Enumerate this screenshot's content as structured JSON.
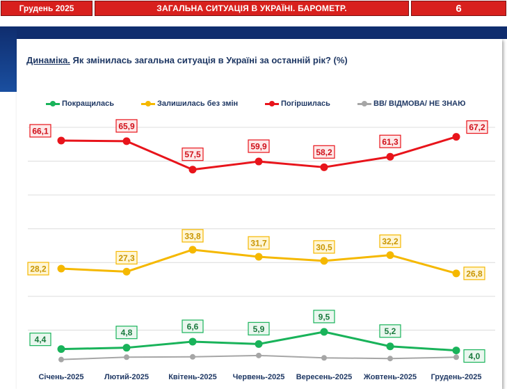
{
  "header": {
    "date": "Грудень 2025",
    "title": "ЗАГАЛЬНА СИТУАЦІЯ В УКРАЇНІ. БАРОМЕТР.",
    "page": "6"
  },
  "question": {
    "lead": "Динаміка.",
    "text": " Як змінилась загальна ситуація в Україні за останній рік? (%)"
  },
  "colors": {
    "brand_red": "#d8201d",
    "navy": "#0f2d6e",
    "text_navy": "#1f3864"
  },
  "chart_data": {
    "type": "line",
    "categories": [
      "Січень-2025",
      "Лютий-2025",
      "Квітень-2025",
      "Червень-2025",
      "Вересень-2025",
      "Жовтень-2025",
      "Грудень-2025"
    ],
    "ylim": [
      0,
      70
    ],
    "grid": true,
    "legend_position": "top",
    "series": [
      {
        "name": "Покращилась",
        "color": "#19b35a",
        "values": [
          4.4,
          4.8,
          6.6,
          5.9,
          9.5,
          5.2,
          4.0
        ],
        "labels": [
          "4,4",
          "4,8",
          "6,6",
          "5,9",
          "9,5",
          "5,2",
          "4,0"
        ],
        "labeled": true
      },
      {
        "name": "Залишилась без змін",
        "color": "#f5b800",
        "values": [
          28.2,
          27.3,
          33.8,
          31.7,
          30.5,
          32.2,
          26.8
        ],
        "labels": [
          "28,2",
          "27,3",
          "33,8",
          "31,7",
          "30,5",
          "32,2",
          "26,8"
        ],
        "labeled": true
      },
      {
        "name": "Погіршилась",
        "color": "#e8141b",
        "values": [
          66.1,
          65.9,
          57.5,
          59.9,
          58.2,
          61.3,
          67.2
        ],
        "labels": [
          "66,1",
          "65,9",
          "57,5",
          "59,9",
          "58,2",
          "61,3",
          "67,2"
        ],
        "labeled": true
      },
      {
        "name": "ВВ/ ВІДМОВА/ НЕ ЗНАЮ",
        "color": "#a6a6a6",
        "values": [
          1.3,
          2.0,
          2.1,
          2.5,
          1.8,
          1.6,
          2.0
        ],
        "labels": [],
        "labeled": false
      }
    ]
  }
}
